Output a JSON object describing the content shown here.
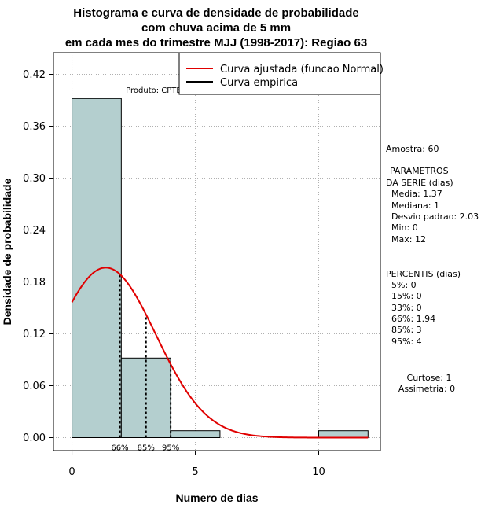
{
  "chart_data": {
    "type": "bar",
    "title": [
      "Histograma e curva de densidade de probabilidade",
      "com chuva acima de 5 mm",
      "em cada mes do trimestre MJJ (1998-2017): Regiao 63"
    ],
    "xlabel": "Numero de dias",
    "ylabel": "Densidade de probabilidade",
    "xlim": [
      -0.75,
      12.5
    ],
    "ylim": [
      -0.015,
      0.445
    ],
    "x_ticks": [
      0,
      5,
      10
    ],
    "x_tick_labels": [
      "0",
      "5",
      "10"
    ],
    "y_ticks": [
      0.0,
      0.06,
      0.12,
      0.18,
      0.24,
      0.3,
      0.36,
      0.42
    ],
    "y_tick_labels": [
      "0.00",
      "0.06",
      "0.12",
      "0.18",
      "0.24",
      "0.30",
      "0.36",
      "0.42"
    ],
    "grid": true,
    "bins": [
      {
        "x0": 0,
        "x1": 2,
        "density": 0.392
      },
      {
        "x0": 2,
        "x1": 4,
        "density": 0.092
      },
      {
        "x0": 4,
        "x1": 6,
        "density": 0.008
      },
      {
        "x0": 6,
        "x1": 8,
        "density": 0.0
      },
      {
        "x0": 8,
        "x1": 10,
        "density": 0.0
      },
      {
        "x0": 10,
        "x1": 12,
        "density": 0.008
      }
    ],
    "normal_curve": {
      "mean": 1.37,
      "sd": 2.03,
      "x_from": 0,
      "x_to": 12
    },
    "percentile_lines": [
      {
        "label": "66%",
        "x": 1.94
      },
      {
        "label": "85%",
        "x": 3
      },
      {
        "label": "95%",
        "x": 4
      }
    ],
    "legend": {
      "position": "top-right",
      "entries": [
        {
          "label": "Curva ajustada (funcao Normal)",
          "color": "#e00000"
        },
        {
          "label": "Curva empirica",
          "color": "#000000"
        }
      ]
    },
    "product_label": "Produto: CPTEC/INPE",
    "bar_color": "#b4cfcf",
    "curve_color": "#e00000"
  },
  "stats": {
    "sample": "Amostra: 60",
    "params_title": [
      "PARAMETROS",
      "DA SERIE (dias)"
    ],
    "params": [
      "Media: 1.37",
      "Mediana: 1",
      "Desvio padrao: 2.03",
      "Min: 0",
      "Max: 12"
    ],
    "percentis_title": "PERCENTIS (dias)",
    "percentis": [
      "5%: 0",
      "15%: 0",
      "33%: 0",
      "66%: 1.94",
      "85%: 3",
      "95%: 4"
    ],
    "shape": [
      "Curtose: 1",
      "Assimetria: 0"
    ]
  }
}
